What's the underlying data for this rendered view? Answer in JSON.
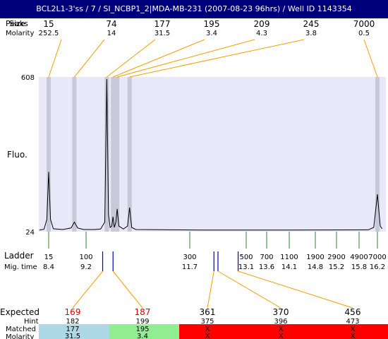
{
  "window": {
    "title": "BCL2L1-3'ss / 7 / SI_NCBP1_2|MDA-MB-231 (2007-08-23 96hrs) / Well ID 1143354"
  },
  "labels": {
    "peaks_header": "Size",
    "peaks_header_overlap": "Peaks",
    "molarity_header": "Molarity",
    "fluo": "Fluo.",
    "ladder": "Ladder",
    "mig_time": "Mig. time",
    "expected": "Expected",
    "hint": "Hint",
    "matched": "Matched",
    "molarity": "Molarity"
  },
  "colors": {
    "title_bg": "#00007c",
    "plot_bg": "#e8e8f8",
    "peak_band": "#c8c8d8",
    "callout_line": "#f0a000",
    "ladder_tick": "#2a8a2a",
    "expected_marker": "#0000c0",
    "expected_red": "#e00000",
    "matched_ok_1": "#add8e6",
    "matched_ok_2": "#90ee90",
    "matched_fail": "#ff0000"
  },
  "chart_data": {
    "type": "line",
    "title": "",
    "ylabel": "Fluo.",
    "ylim": [
      24,
      608
    ],
    "ytick_labels": [
      "608",
      "24"
    ],
    "xlim_migration_time": [
      8.2,
      16.3
    ],
    "peaks": [
      {
        "size": "15",
        "molarity": "252.5",
        "mig_time": 8.4
      },
      {
        "size": "74",
        "molarity": "14",
        "mig_time": 8.95
      },
      {
        "size": "177",
        "molarity": "31.5",
        "mig_time": 9.7
      },
      {
        "size": "195",
        "molarity": "3.4",
        "mig_time": 9.85
      },
      {
        "size": "209",
        "molarity": "4.3",
        "mig_time": 9.95
      },
      {
        "size": "245",
        "molarity": "3.8",
        "mig_time": 10.25
      },
      {
        "size": "7000",
        "molarity": "0.5",
        "mig_time": 16.2
      }
    ],
    "trace": [
      [
        8.2,
        30
      ],
      [
        8.3,
        33
      ],
      [
        8.36,
        70
      ],
      [
        8.4,
        250
      ],
      [
        8.44,
        70
      ],
      [
        8.5,
        35
      ],
      [
        8.7,
        32
      ],
      [
        8.88,
        38
      ],
      [
        8.95,
        60
      ],
      [
        9.02,
        38
      ],
      [
        9.15,
        32
      ],
      [
        9.4,
        32
      ],
      [
        9.55,
        34
      ],
      [
        9.65,
        60
      ],
      [
        9.7,
        600
      ],
      [
        9.74,
        90
      ],
      [
        9.78,
        40
      ],
      [
        9.82,
        45
      ],
      [
        9.85,
        80
      ],
      [
        9.88,
        40
      ],
      [
        9.92,
        60
      ],
      [
        9.95,
        110
      ],
      [
        9.99,
        45
      ],
      [
        10.1,
        34
      ],
      [
        10.2,
        45
      ],
      [
        10.25,
        115
      ],
      [
        10.3,
        40
      ],
      [
        10.4,
        32
      ],
      [
        12.0,
        30
      ],
      [
        14.0,
        30
      ],
      [
        16.0,
        31
      ],
      [
        16.12,
        40
      ],
      [
        16.2,
        165
      ],
      [
        16.26,
        45
      ],
      [
        16.3,
        35
      ]
    ],
    "ladder": [
      {
        "size": "15",
        "mig_time": "8.4",
        "t": 8.4
      },
      {
        "size": "100",
        "mig_time": "9.2",
        "t": 9.2
      },
      {
        "size": "300",
        "mig_time": "11.7",
        "t": 11.7
      },
      {
        "size": "500",
        "mig_time": "13.1",
        "t": 13.1
      },
      {
        "size": "700",
        "mig_time": "13.6",
        "t": 13.6
      },
      {
        "size": "1100",
        "mig_time": "14.1",
        "t": 14.1
      },
      {
        "size": "1900",
        "mig_time": "14.8",
        "t": 14.8
      },
      {
        "size": "2900",
        "mig_time": "15.2",
        "t": 15.2
      },
      {
        "size": "4900",
        "mig_time": "15.8",
        "t": 15.8
      },
      {
        "size": "7000",
        "mig_time": "16.2",
        "t": 16.2
      }
    ],
    "expected": [
      {
        "size": "169",
        "hint": "182",
        "matched": "177",
        "molarity": "31.5",
        "status": "match",
        "mig_time": 9.6
      },
      {
        "size": "187",
        "hint": "199",
        "matched": "195",
        "molarity": "3.4",
        "status": "match",
        "mig_time": 9.85
      },
      {
        "size": "361",
        "hint": "375",
        "matched": "X",
        "molarity": "X",
        "status": "none",
        "mig_time": 12.3
      },
      {
        "size": "370",
        "hint": "396",
        "matched": "X",
        "molarity": "X",
        "status": "none",
        "mig_time": 12.4
      },
      {
        "size": "456",
        "hint": "473",
        "matched": "X",
        "molarity": "X",
        "status": "none",
        "mig_time": 12.9
      }
    ]
  }
}
